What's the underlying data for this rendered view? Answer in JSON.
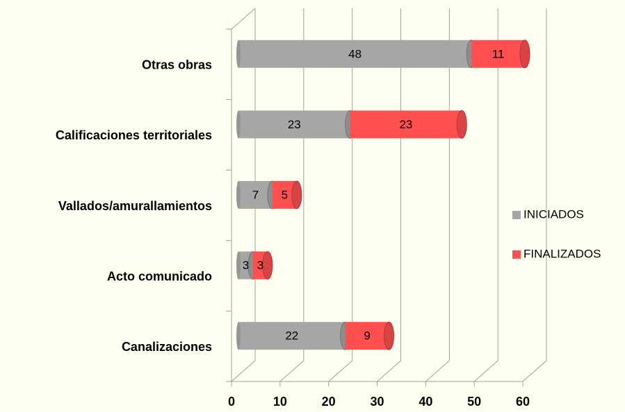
{
  "chart_data": {
    "type": "stacked-bar-3d",
    "categories": [
      "Otras obras",
      "Calificaciones territoriales",
      "Vallados/amurallamientos",
      "Acto comunicado",
      "Canalizaciones"
    ],
    "series": [
      {
        "name": "INICIADOS",
        "color": "#a6a6a6",
        "values": [
          48,
          23,
          7,
          3,
          22
        ]
      },
      {
        "name": "FINALIZADOS",
        "color": "#ff4f4f",
        "values": [
          11,
          23,
          5,
          3,
          9
        ]
      }
    ],
    "xlim": [
      0,
      60
    ],
    "xticks": [
      0,
      10,
      20,
      30,
      40,
      50,
      60
    ],
    "grid": true,
    "legend": "right"
  }
}
